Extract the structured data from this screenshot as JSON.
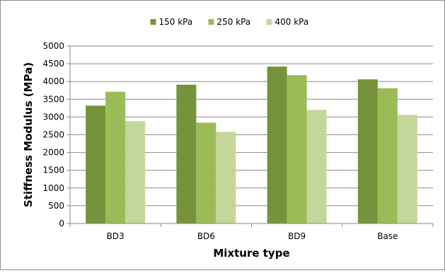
{
  "chart_data": {
    "type": "bar",
    "title": "",
    "xlabel": "Mixture type",
    "ylabel": "Stiffness Modulus (MPa)",
    "categories": [
      "BD3",
      "BD6",
      "BD9",
      "Base"
    ],
    "ylim": [
      0,
      5000
    ],
    "ytick_step": 500,
    "yticks": [
      "0",
      "500",
      "1000",
      "1500",
      "2000",
      "2500",
      "3000",
      "3500",
      "4000",
      "4500",
      "5000"
    ],
    "grid": true,
    "legend_position": "top",
    "series": [
      {
        "name": "150 kPa",
        "color": "#76933c",
        "values": [
          3320,
          3910,
          4420,
          4060
        ]
      },
      {
        "name": "250 kPa",
        "color": "#9bbb59",
        "values": [
          3710,
          2840,
          4180,
          3810
        ]
      },
      {
        "name": "400 kPa",
        "color": "#c4d79b",
        "values": [
          2880,
          2580,
          3200,
          3060
        ]
      }
    ]
  }
}
